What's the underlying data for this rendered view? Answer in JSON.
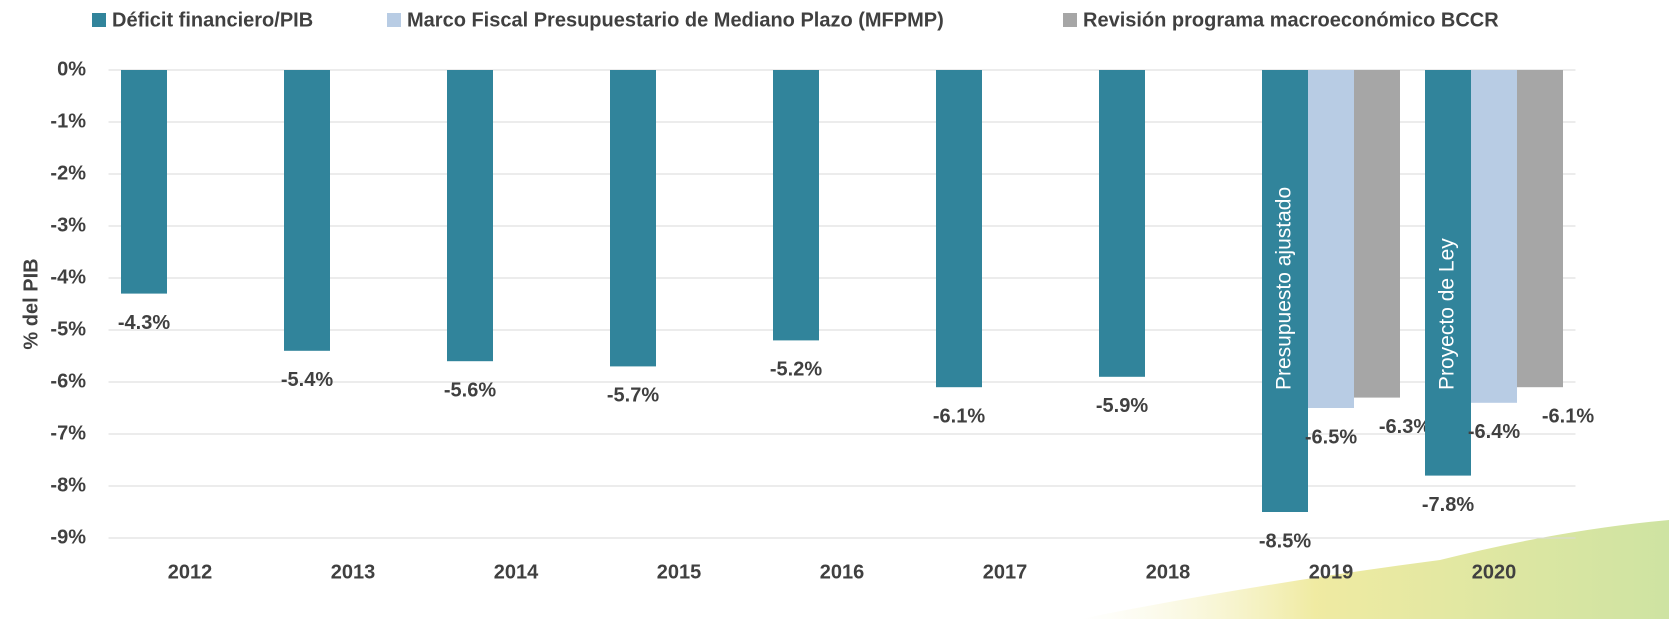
{
  "chart_data": {
    "type": "bar",
    "y_label": "% del PIB",
    "categories": [
      "2012",
      "2013",
      "2014",
      "2015",
      "2016",
      "2017",
      "2018",
      "2019",
      "2020"
    ],
    "series": [
      {
        "name": "Déficit financiero/PIB",
        "color": "#31849b",
        "values": [
          -4.3,
          -5.4,
          -5.6,
          -5.7,
          -5.2,
          -6.1,
          -5.9,
          -8.5,
          -7.8
        ],
        "value_labels": [
          "-4.3%",
          "-5.4%",
          "-5.6%",
          "-5.7%",
          "-5.2%",
          "-6.1%",
          "-5.9%",
          "-8.5%",
          "-7.8%"
        ],
        "annotations": [
          null,
          null,
          null,
          null,
          null,
          null,
          null,
          "Presupuesto ajustado",
          "Proyecto de Ley"
        ]
      },
      {
        "name": "Marco Fiscal Presupuestario de Mediano Plazo (MFPMP)",
        "color": "#b8cce4",
        "values": [
          null,
          null,
          null,
          null,
          null,
          null,
          null,
          -6.5,
          -6.4
        ],
        "value_labels": [
          null,
          null,
          null,
          null,
          null,
          null,
          null,
          "-6.5%",
          "-6.4%"
        ]
      },
      {
        "name": "Revisión programa macroeconómico BCCR",
        "color": "#a6a6a6",
        "values": [
          null,
          null,
          null,
          null,
          null,
          null,
          null,
          -6.3,
          -6.1
        ],
        "value_labels": [
          null,
          null,
          null,
          null,
          null,
          null,
          null,
          "-6.3%",
          "-6.1%"
        ]
      }
    ],
    "ylim": [
      -9,
      0
    ],
    "yticks": [
      {
        "value": 0,
        "label": "0%"
      },
      {
        "value": -1,
        "label": "-1%"
      },
      {
        "value": -2,
        "label": "-2%"
      },
      {
        "value": -3,
        "label": "-3%"
      },
      {
        "value": -4,
        "label": "-4%"
      },
      {
        "value": -5,
        "label": "-5%"
      },
      {
        "value": -6,
        "label": "-6%"
      },
      {
        "value": -7,
        "label": "-7%"
      },
      {
        "value": -8,
        "label": "-8%"
      },
      {
        "value": -9,
        "label": "-9%"
      }
    ],
    "grid": true,
    "legend": "top"
  }
}
